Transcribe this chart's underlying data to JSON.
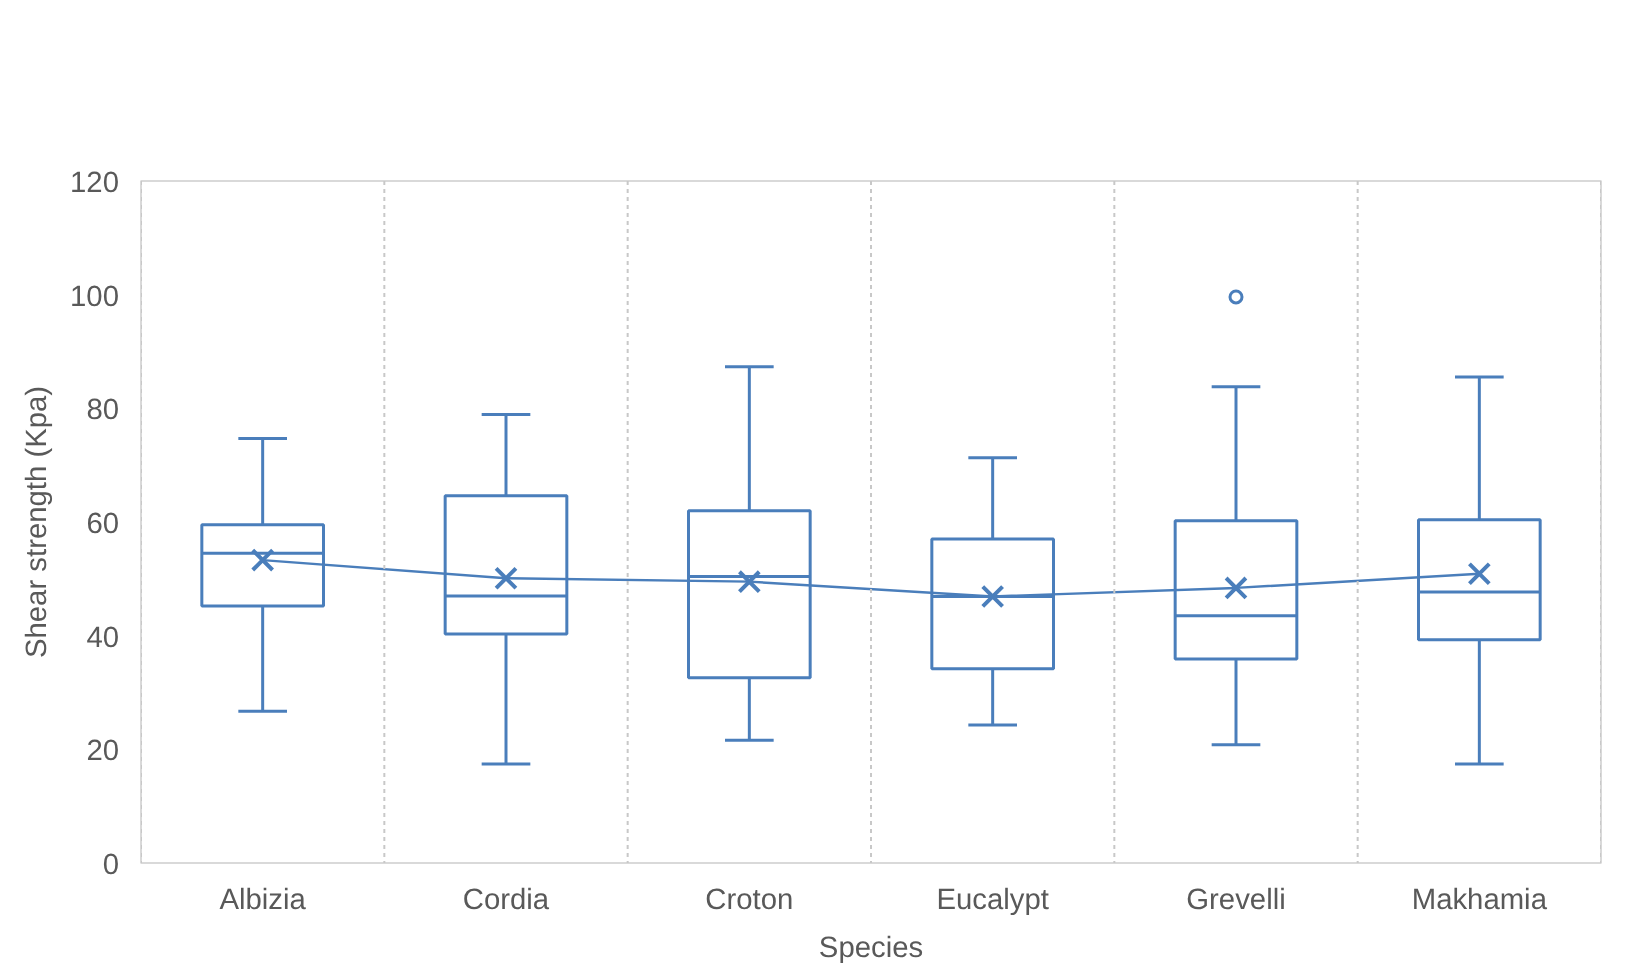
{
  "chart_data": {
    "type": "box",
    "xlabel": "Species",
    "ylabel": "Shear strength (Kpa)",
    "categories": [
      "Albizia",
      "Cordia",
      "Croton",
      "Eucalypt",
      "Grevelli",
      "Makhamia"
    ],
    "ylim": [
      0,
      120
    ],
    "yticks": [
      0,
      20,
      40,
      60,
      80,
      100,
      120
    ],
    "grid": "x",
    "series": [
      {
        "color": "#4a7ebb",
        "boxes": [
          {
            "low": 26.7,
            "q1": 45.2,
            "median": 54.5,
            "q3": 59.5,
            "high": 74.7
          },
          {
            "low": 17.4,
            "q1": 40.3,
            "median": 47.0,
            "q3": 64.6,
            "high": 78.9
          },
          {
            "low": 21.6,
            "q1": 32.6,
            "median": 50.4,
            "q3": 62.0,
            "high": 87.3
          },
          {
            "low": 24.3,
            "q1": 34.2,
            "median": 46.9,
            "q3": 57.0,
            "high": 71.3
          },
          {
            "low": 20.8,
            "q1": 35.9,
            "median": 43.5,
            "q3": 60.2,
            "high": 83.8,
            "outliers": [
              99.6
            ]
          },
          {
            "low": 17.4,
            "q1": 39.3,
            "median": 47.7,
            "q3": 60.4,
            "high": 85.5
          }
        ]
      },
      {
        "type": "line",
        "color": "#4a7ebb",
        "marker": "cross",
        "x": [
          "Albizia",
          "Cordia",
          "Croton",
          "Eucalypt",
          "Grevelli",
          "Makhamia"
        ],
        "values": [
          53.3,
          50.1,
          49.5,
          46.9,
          48.4,
          50.9
        ]
      }
    ]
  }
}
